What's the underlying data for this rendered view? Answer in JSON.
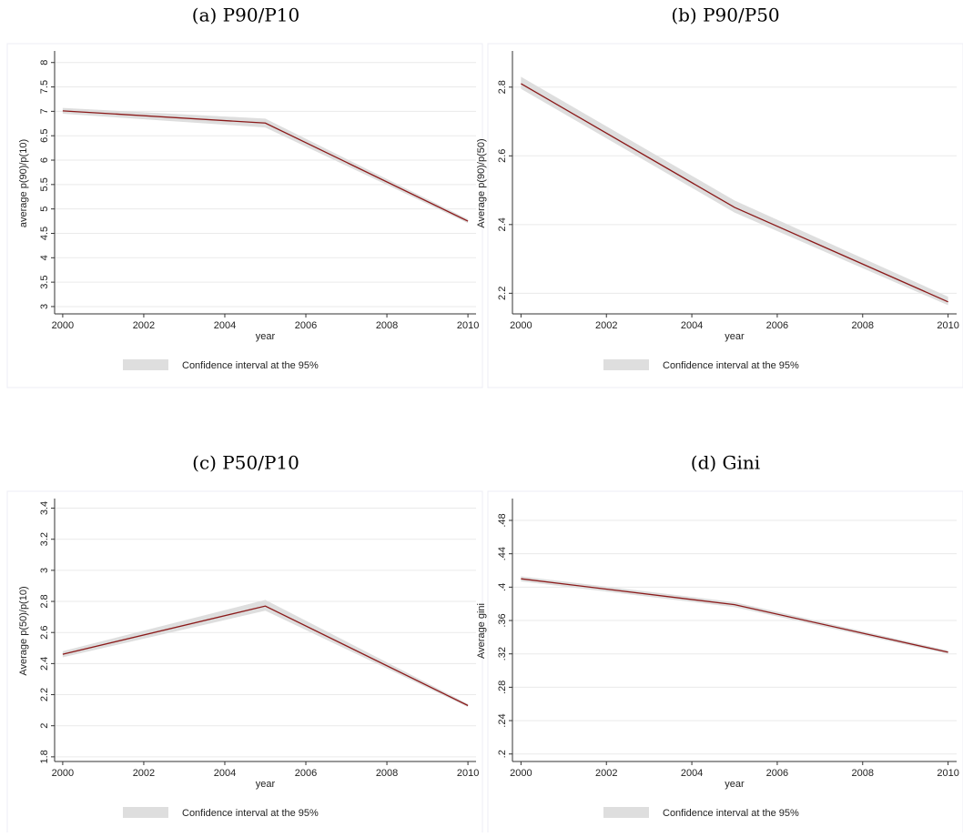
{
  "chart_data": [
    {
      "type": "line",
      "title": "(a) P90/P10",
      "y_label": "average p(90)/p(10)",
      "x_label": "year",
      "x": [
        2000,
        2005,
        2010
      ],
      "values": [
        7.01,
        6.76,
        4.75
      ],
      "line_color": "#8b1a1a",
      "ci": {
        "name": "Confidence interval at the 95%",
        "color": "#dedede",
        "lower": [
          6.95,
          6.67,
          4.71
        ],
        "upper": [
          7.07,
          6.85,
          4.79
        ]
      },
      "xlim": [
        1999.8,
        2010.2
      ],
      "xticks": [
        2000,
        2002,
        2004,
        2006,
        2008,
        2010
      ],
      "ylim": [
        2.85,
        8.2
      ],
      "yticks": [
        3,
        3.5,
        4,
        4.5,
        5,
        5.5,
        6,
        6.5,
        7,
        7.5,
        8
      ],
      "grid": true
    },
    {
      "type": "line",
      "title": "(b) P90/P50",
      "y_label": "Average p(90)/p(50)",
      "x_label": "year",
      "x": [
        2000,
        2005,
        2010
      ],
      "values": [
        2.81,
        2.45,
        2.175
      ],
      "line_color": "#8b1a1a",
      "ci": {
        "name": "Confidence interval at the 95%",
        "color": "#dedede",
        "lower": [
          2.795,
          2.435,
          2.165
        ],
        "upper": [
          2.83,
          2.47,
          2.19
        ]
      },
      "xlim": [
        1999.8,
        2010.2
      ],
      "xticks": [
        2000,
        2002,
        2004,
        2006,
        2008,
        2010
      ],
      "ylim": [
        2.14,
        2.9
      ],
      "yticks": [
        2.2,
        2.4,
        2.6,
        2.8
      ],
      "grid": true
    },
    {
      "type": "line",
      "title": "(c) P50/P10",
      "y_label": "Average p(50)/p(10)",
      "x_label": "year",
      "x": [
        2000,
        2005,
        2010
      ],
      "values": [
        2.46,
        2.77,
        2.13
      ],
      "line_color": "#8b1a1a",
      "ci": {
        "name": "Confidence interval at the 95%",
        "color": "#dedede",
        "lower": [
          2.44,
          2.74,
          2.12
        ],
        "upper": [
          2.48,
          2.81,
          2.14
        ]
      },
      "xlim": [
        1999.8,
        2010.2
      ],
      "xticks": [
        2000,
        2002,
        2004,
        2006,
        2008,
        2010
      ],
      "ylim": [
        1.77,
        3.45
      ],
      "yticks": [
        1.8,
        2,
        2.2,
        2.4,
        2.6,
        2.8,
        3,
        3.2,
        3.4
      ],
      "grid": true
    },
    {
      "type": "line",
      "title": "(d) Gini",
      "y_label": "Average gini",
      "x_label": "year",
      "x": [
        2000,
        2005,
        2010
      ],
      "values": [
        0.41,
        0.379,
        0.322
      ],
      "line_color": "#8b1a1a",
      "ci": {
        "name": "Confidence interval at the 95%",
        "color": "#dedede",
        "lower": [
          0.407,
          0.376,
          0.32
        ],
        "upper": [
          0.413,
          0.382,
          0.324
        ]
      },
      "xlim": [
        1999.8,
        2010.2
      ],
      "xticks": [
        2000,
        2002,
        2004,
        2006,
        2008,
        2010
      ],
      "ylim": [
        0.191,
        0.504
      ],
      "yticks": [
        {
          "value": 0.2,
          "label": ".2"
        },
        {
          "value": 0.24,
          "label": ".24"
        },
        {
          "value": 0.28,
          "label": ".28"
        },
        {
          "value": 0.32,
          "label": ".32"
        },
        {
          "value": 0.36,
          "label": ".36"
        },
        {
          "value": 0.4,
          "label": ".4"
        },
        {
          "value": 0.44,
          "label": ".44"
        },
        {
          "value": 0.48,
          "label": ".48"
        }
      ],
      "grid": true
    }
  ]
}
